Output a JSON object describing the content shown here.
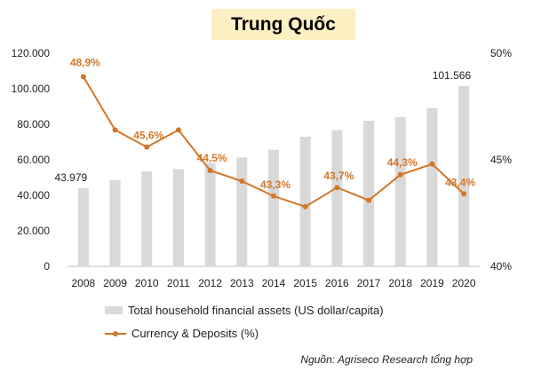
{
  "chart_data": {
    "type": "bar",
    "title": "Trung Quốc",
    "categories": [
      "2008",
      "2009",
      "2010",
      "2011",
      "2012",
      "2013",
      "2014",
      "2015",
      "2016",
      "2017",
      "2018",
      "2019",
      "2020"
    ],
    "series": [
      {
        "name": "Total household financial assets (US dollar/capita)",
        "type": "bar",
        "axis": "left",
        "values": [
          43979,
          48500,
          53500,
          54800,
          58000,
          61300,
          65700,
          73000,
          76700,
          82000,
          84000,
          89000,
          101566
        ],
        "color": "#d9d9d9"
      },
      {
        "name": "Currency & Deposits (%)",
        "type": "line",
        "axis": "right",
        "values": [
          48.9,
          46.4,
          45.6,
          46.4,
          44.5,
          44.0,
          43.3,
          42.8,
          43.7,
          43.1,
          44.3,
          44.8,
          43.4
        ],
        "color": "#d2772a"
      }
    ],
    "bar_labels": [
      {
        "index": 0,
        "text": "43.979"
      },
      {
        "index": 12,
        "text": "101.566"
      }
    ],
    "line_labels": [
      {
        "index": 0,
        "text": "48,9%"
      },
      {
        "index": 2,
        "text": "45,6%"
      },
      {
        "index": 4,
        "text": "44,5%"
      },
      {
        "index": 6,
        "text": "43,3%"
      },
      {
        "index": 8,
        "text": "43,7%"
      },
      {
        "index": 10,
        "text": "44,3%"
      },
      {
        "index": 12,
        "text": "43,4%"
      }
    ],
    "y_left": {
      "ylim": [
        0,
        120000
      ],
      "ticks": [
        0,
        20000,
        40000,
        60000,
        80000,
        100000,
        120000
      ],
      "tick_labels": [
        "0",
        "20.000",
        "40.000",
        "60.000",
        "80.000",
        "100.000",
        "120.000"
      ]
    },
    "y_right": {
      "ylim": [
        40,
        50
      ],
      "ticks": [
        40,
        45,
        50
      ],
      "tick_labels": [
        "40%",
        "45%",
        "50%"
      ]
    },
    "grid": false,
    "legend_position": "bottom-left"
  },
  "legend": {
    "bar_label": "Total household financial assets (US dollar/capita)",
    "line_label": "Currency & Deposits (%)"
  },
  "source": "Nguồn:  Agriseco Research tổng hợp"
}
